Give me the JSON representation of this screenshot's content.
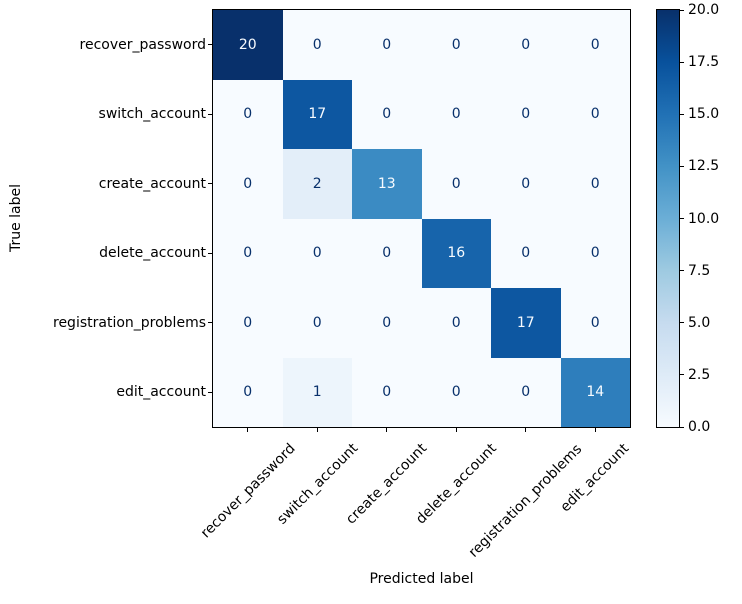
{
  "figure": {
    "background": "#ffffff",
    "axis_color": "#000000"
  },
  "chart_data": {
    "type": "heatmap",
    "title": "",
    "xlabel": "Predicted label",
    "ylabel": "True label",
    "categories": [
      "recover_password",
      "switch_account",
      "create_account",
      "delete_account",
      "registration_problems",
      "edit_account"
    ],
    "matrix": [
      [
        20,
        0,
        0,
        0,
        0,
        0
      ],
      [
        0,
        17,
        0,
        0,
        0,
        0
      ],
      [
        0,
        2,
        13,
        0,
        0,
        0
      ],
      [
        0,
        0,
        0,
        16,
        0,
        0
      ],
      [
        0,
        0,
        0,
        0,
        17,
        0
      ],
      [
        0,
        1,
        0,
        0,
        0,
        14
      ]
    ],
    "vmin": 0,
    "vmax": 20,
    "colormap": "Blues",
    "colormap_stops": [
      "#f7fbff",
      "#deebf7",
      "#c6dbef",
      "#9ecae1",
      "#6baed6",
      "#4292c6",
      "#2171b5",
      "#08519c",
      "#08306b"
    ],
    "colorbar_tick_values": [
      0,
      2.5,
      5,
      7.5,
      10,
      12.5,
      15,
      17.5,
      20
    ],
    "colorbar_tick_labels": [
      "0.0",
      "2.5",
      "5.0",
      "7.5",
      "10.0",
      "12.5",
      "15.0",
      "17.5",
      "20.0"
    ],
    "cell_text_color_low": "#08306b",
    "cell_text_color_high": "#f7fbff",
    "text_threshold": 10,
    "grid": false,
    "legend_position": "colorbar-right"
  }
}
